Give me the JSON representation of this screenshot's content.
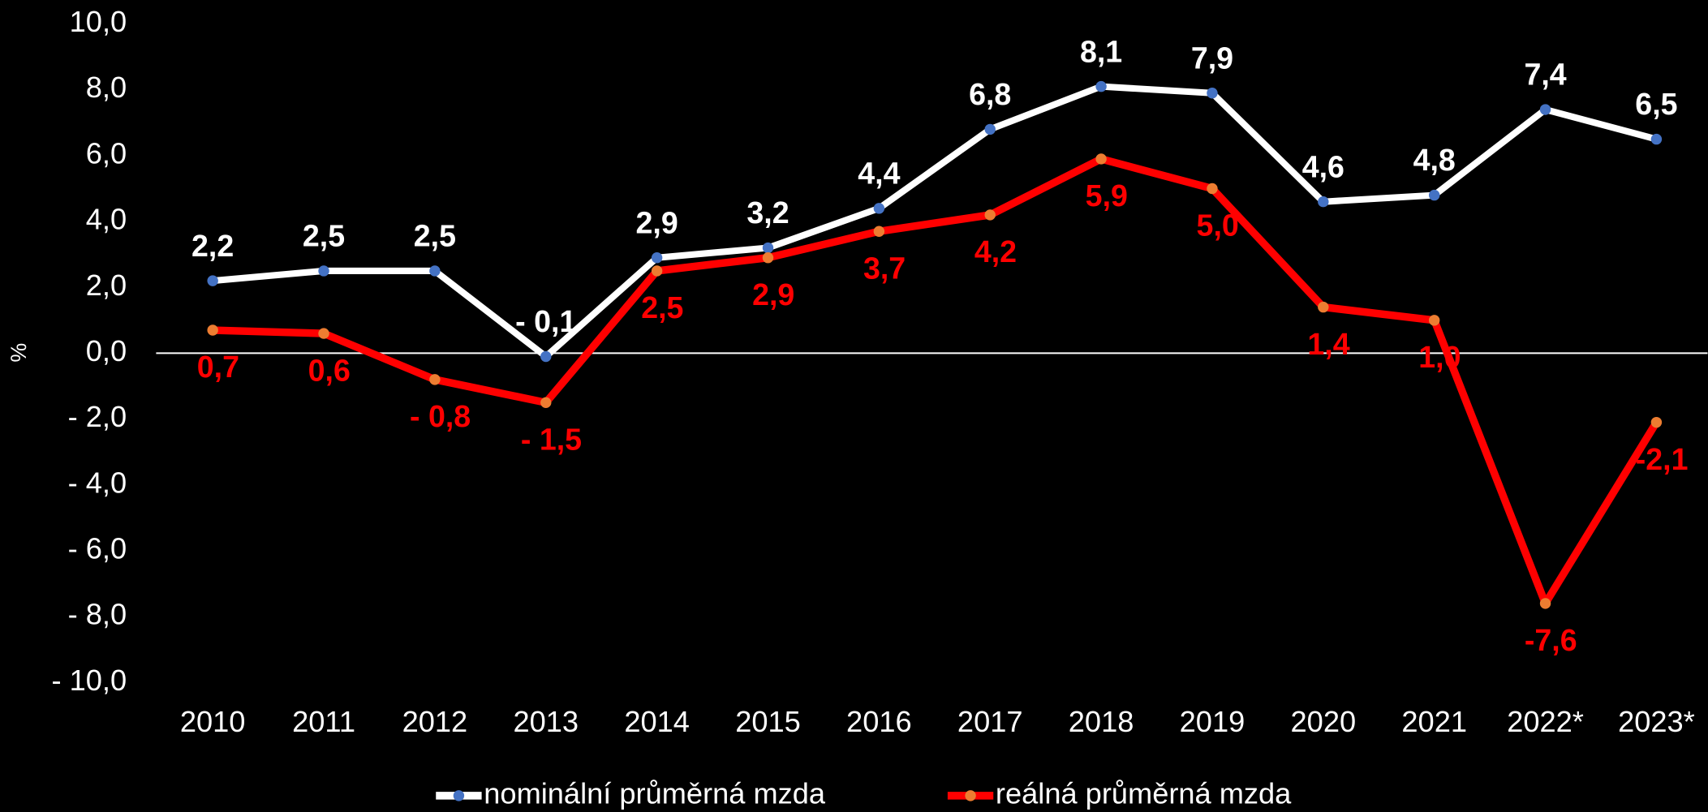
{
  "chart_data": {
    "type": "line",
    "y_label": "%",
    "categories": [
      "2010",
      "2011",
      "2012",
      "2013",
      "2014",
      "2015",
      "2016",
      "2017",
      "2018",
      "2019",
      "2020",
      "2021",
      "2022*",
      "2023*"
    ],
    "series": [
      {
        "name": "nominální průměrná mzda",
        "color": "#ffffff",
        "marker_color": "#4472c4",
        "values": [
          2.2,
          2.5,
          2.5,
          -0.1,
          2.9,
          3.2,
          4.4,
          6.8,
          8.1,
          7.9,
          4.6,
          4.8,
          7.4,
          6.5
        ],
        "value_labels": [
          "2,2",
          "2,5",
          "2,5",
          "- 0,1",
          "2,9",
          "3,2",
          "4,4",
          "6,8",
          "8,1",
          "7,9",
          "4,6",
          "4,8",
          "7,4",
          "6,5"
        ]
      },
      {
        "name": "reálná průměrná mzda",
        "color": "#ff0000",
        "marker_color": "#ed7d31",
        "values": [
          0.7,
          0.6,
          -0.8,
          -1.5,
          2.5,
          2.9,
          3.7,
          4.2,
          5.9,
          5.0,
          1.4,
          1.0,
          -7.6,
          -2.1
        ],
        "value_labels": [
          "0,7",
          "0,6",
          "- 0,8",
          "- 1,5",
          "2,5",
          "2,9",
          "3,7",
          "4,2",
          "5,9",
          "5,0",
          "1,4",
          "1,0",
          "-7,6",
          "-2,1"
        ]
      }
    ],
    "ylim": [
      -10,
      10
    ],
    "yticks": [
      {
        "value": 10,
        "label": "10,0"
      },
      {
        "value": 8,
        "label": "8,0"
      },
      {
        "value": 6,
        "label": "6,0"
      },
      {
        "value": 4,
        "label": "4,0"
      },
      {
        "value": 2,
        "label": "2,0"
      },
      {
        "value": 0,
        "label": "0,0"
      },
      {
        "value": -2,
        "label": "- 2,0"
      },
      {
        "value": -4,
        "label": "- 4,0"
      },
      {
        "value": -6,
        "label": "- 6,0"
      },
      {
        "value": -8,
        "label": "- 8,0"
      },
      {
        "value": -10,
        "label": "- 10,0"
      }
    ],
    "legend": "bottom"
  }
}
